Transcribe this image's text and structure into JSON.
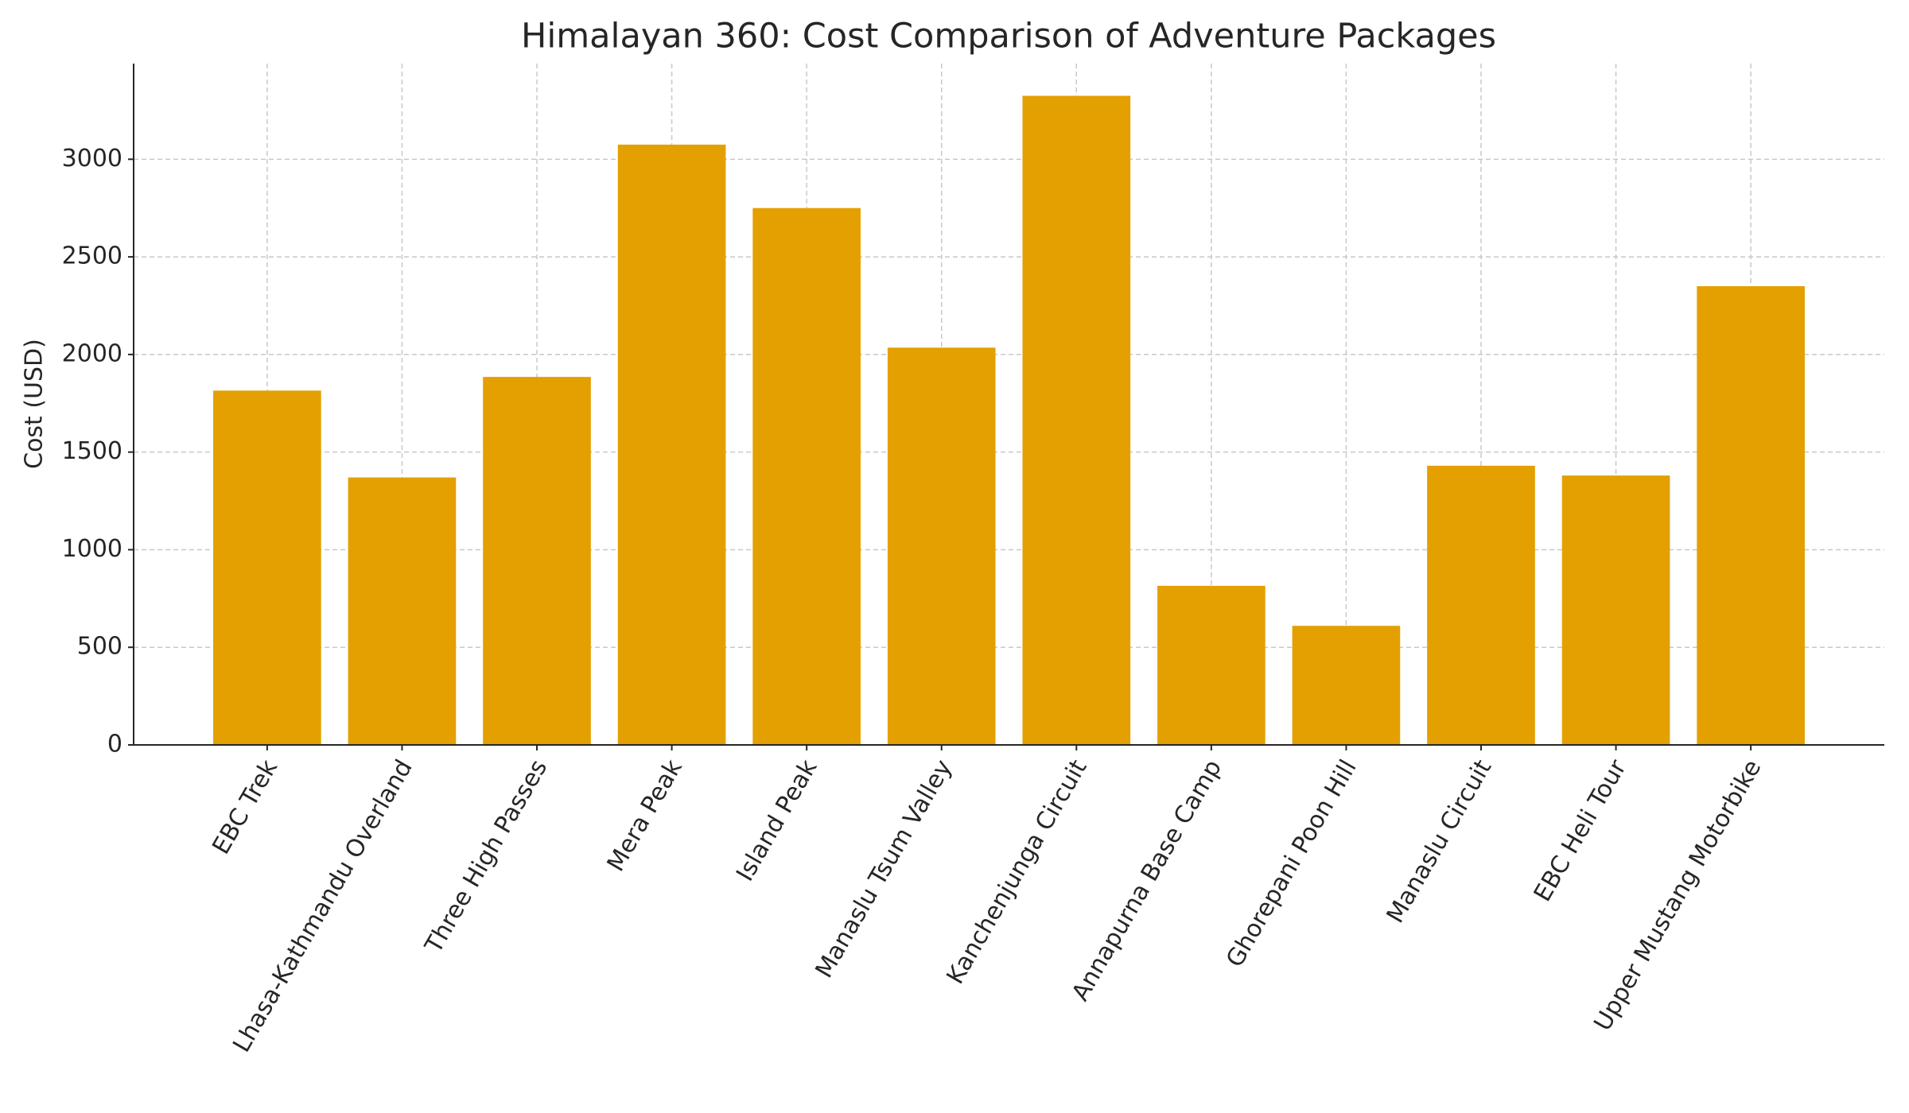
{
  "chart_data": {
    "type": "bar",
    "title": "Himalayan 360: Cost Comparison of Adventure Packages",
    "y_label": "Cost (USD)",
    "categories": [
      "EBC Trek",
      "Lhasa-Kathmandu Overland",
      "Three High Passes",
      "Mera Peak",
      "Island Peak",
      "Manaslu Tsum Valley",
      "Kanchenjunga Circuit",
      "Annapurna Base Camp",
      "Ghorepani Poon Hill",
      "Manaslu Circuit",
      "EBC Heli Tour",
      "Upper Mustang Motorbike"
    ],
    "values": [
      1815,
      1370,
      1885,
      3075,
      2750,
      2035,
      3325,
      815,
      610,
      1430,
      1380,
      2350
    ],
    "color": "#e3a000",
    "ylim": [
      0,
      3490
    ],
    "yticks": [
      0,
      500,
      1000,
      1500,
      2000,
      2500,
      3000
    ],
    "grid": true
  }
}
